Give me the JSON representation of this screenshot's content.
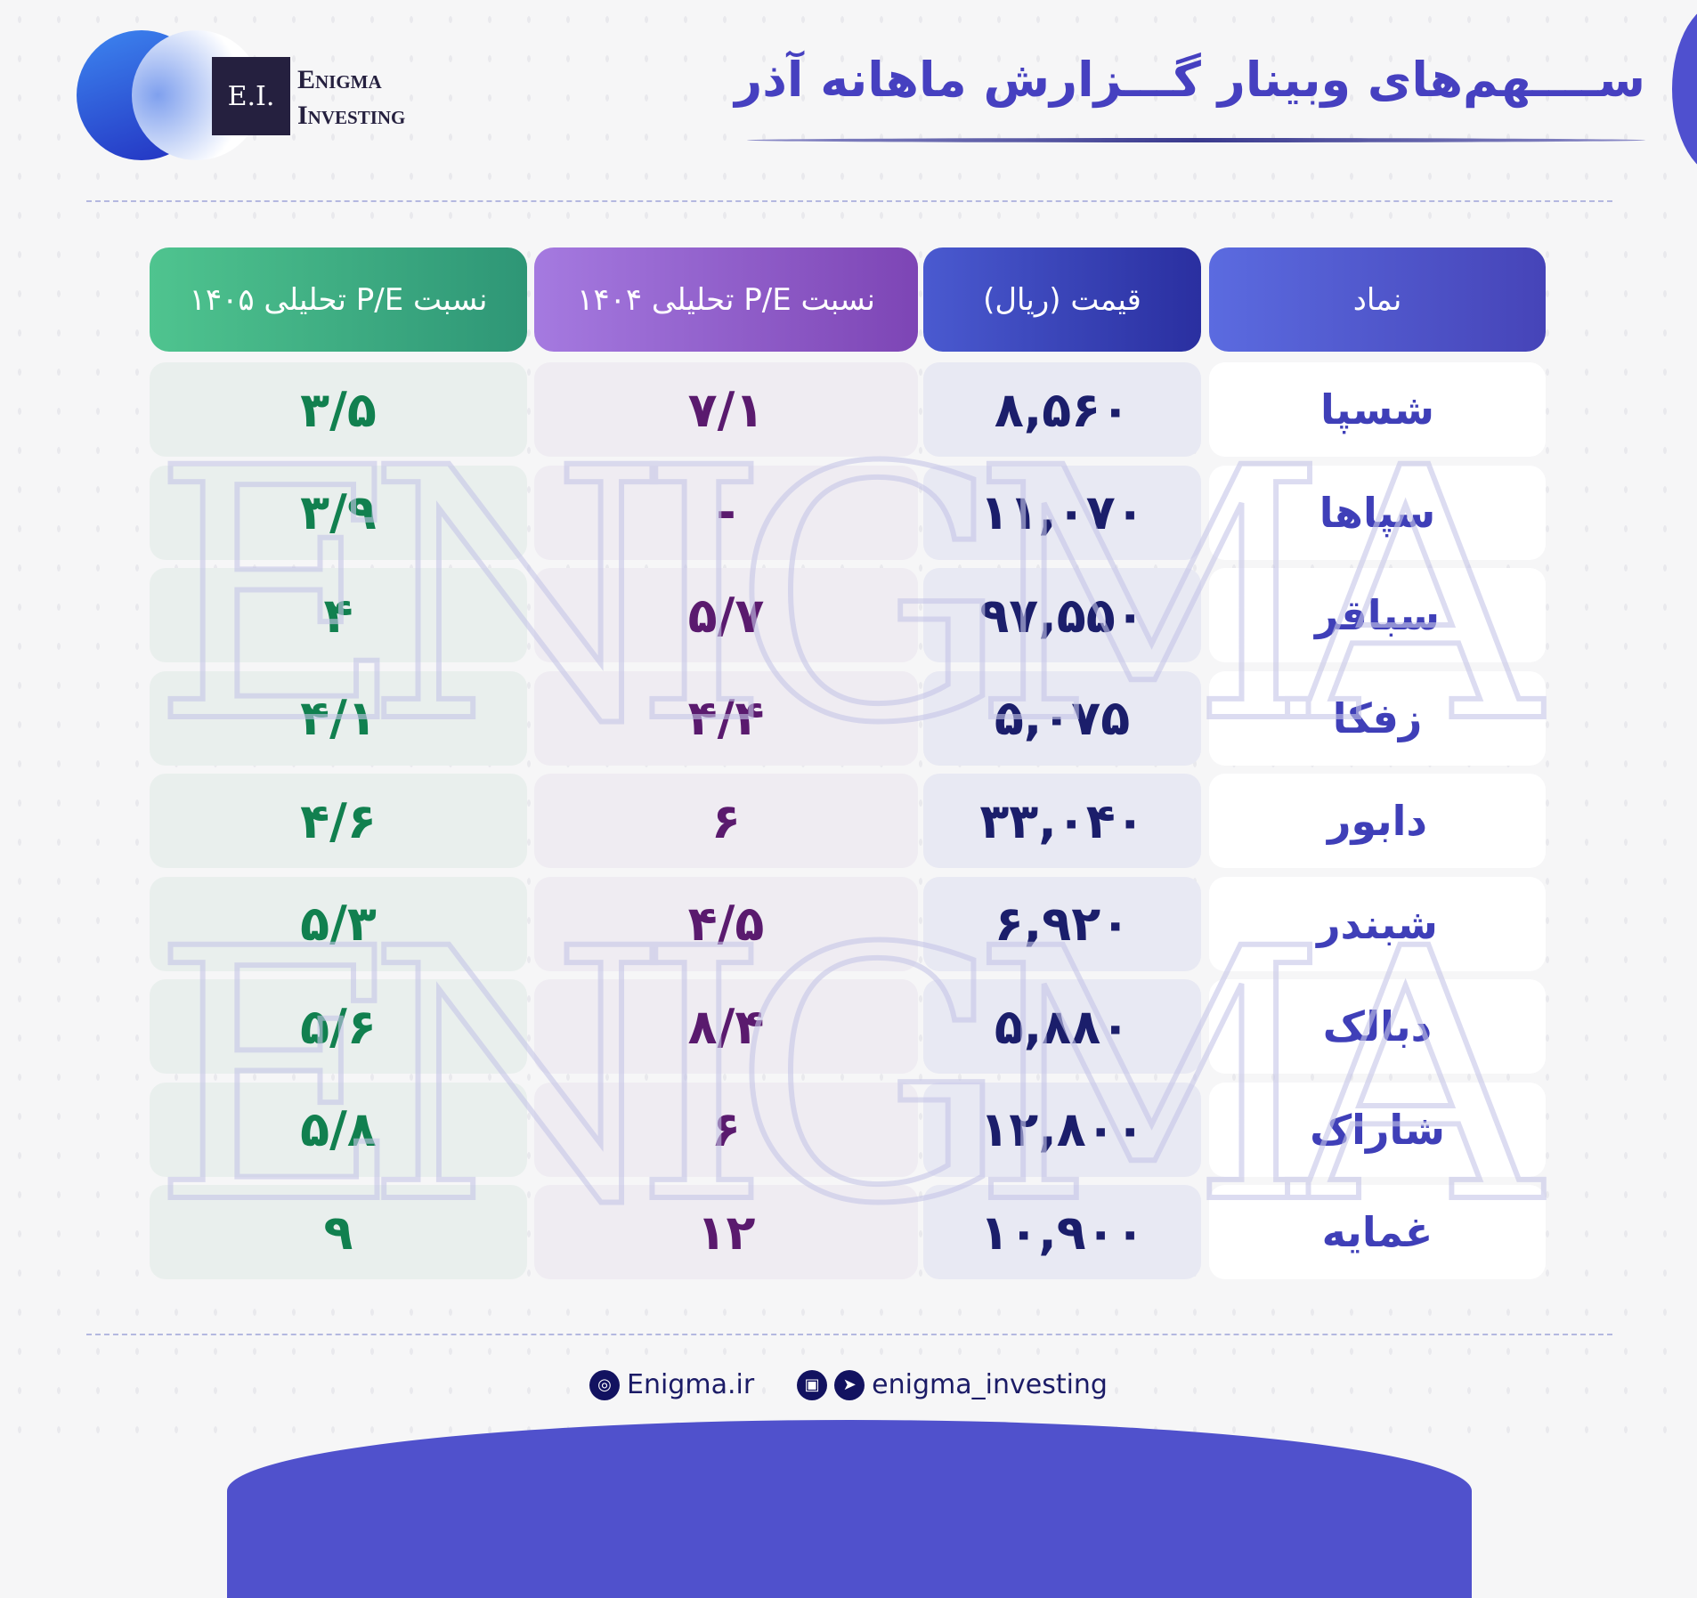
{
  "header": {
    "title": "ســــهم‌های وبینار گـــزارش ماهانه آذر",
    "logo_mark": "E.I.",
    "brand_line1": "Enigma",
    "brand_line2": "Investing"
  },
  "watermark": "ENIGMA",
  "table": {
    "columns": [
      "نماد",
      "قیمت (ریال)",
      "نسبت P/E تحلیلی ۱۴۰۴",
      "نسبت P/E تحلیلی ۱۴۰۵"
    ],
    "rows": [
      [
        "شسپا",
        "۸,۵۶۰",
        "۷/۱",
        "۳/۵"
      ],
      [
        "سپاها",
        "۱۱,۰۷۰",
        "-",
        "۳/۹"
      ],
      [
        "سباقر",
        "۹۷,۵۵۰",
        "۵/۷",
        "۴"
      ],
      [
        "زفکا",
        "۵,۰۷۵",
        "۴/۴",
        "۴/۱"
      ],
      [
        "دابور",
        "۳۳,۰۴۰",
        "۶",
        "۴/۶"
      ],
      [
        "شبندر",
        "۶,۹۲۰",
        "۴/۵",
        "۵/۳"
      ],
      [
        "دبالک",
        "۵,۸۸۰",
        "۸/۴",
        "۵/۶"
      ],
      [
        "شاراک",
        "۱۲,۸۰۰",
        "۶",
        "۵/۸"
      ],
      [
        "غمایه",
        "۱۰,۹۰۰",
        "۱۲",
        "۹"
      ]
    ]
  },
  "colors": {
    "symbol": "#3f3fb8",
    "price": "#1b1e6b",
    "pe1404": "#5a1a6e",
    "pe1405": "#11804f",
    "accent": "#5051cc"
  },
  "footer": {
    "website": "Enigma.ir",
    "handle": "enigma_investing",
    "icons": [
      "globe-icon",
      "instagram-icon",
      "telegram-icon"
    ]
  }
}
